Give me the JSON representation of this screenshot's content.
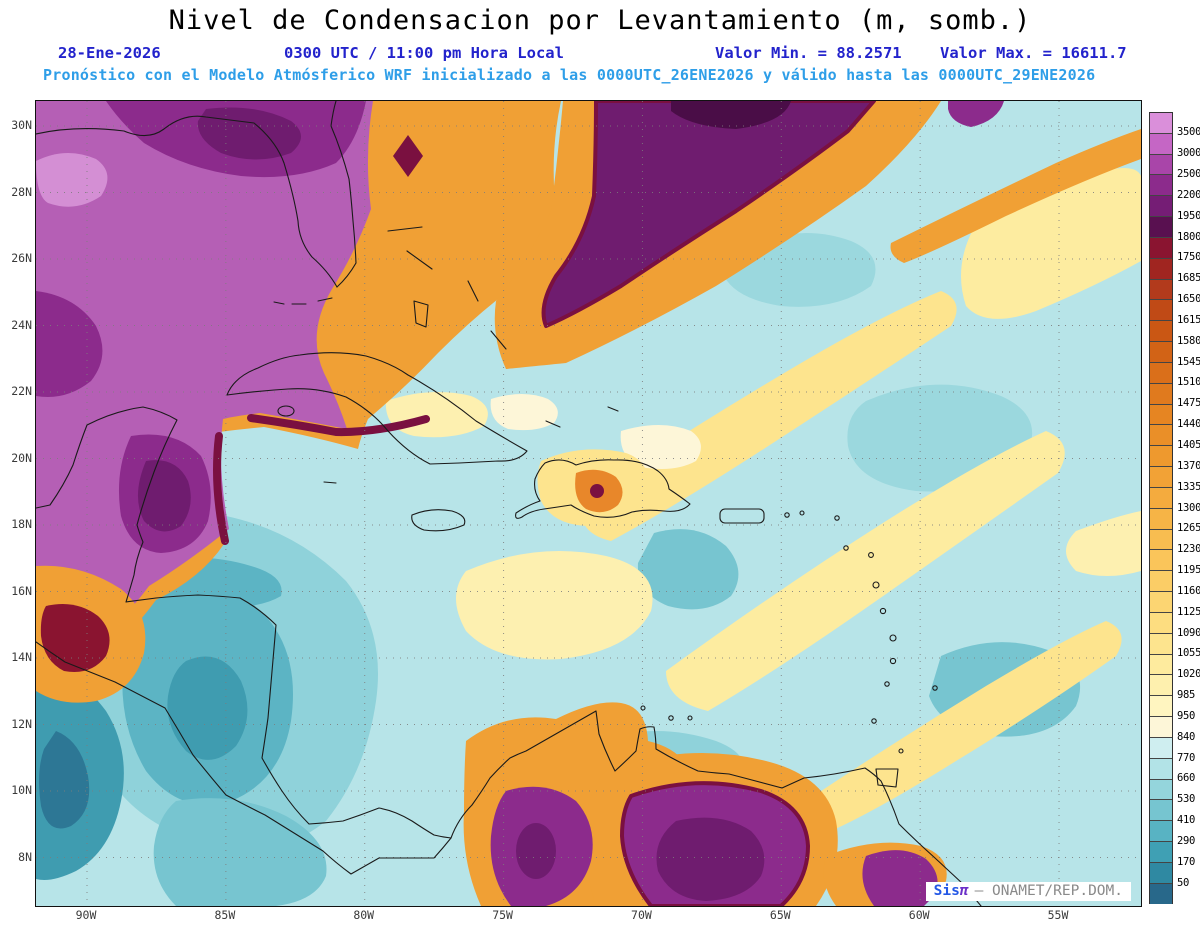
{
  "title": "Nivel de Condensacion por Levantamiento (m, somb.)",
  "header": {
    "date": "28-Ene-2026",
    "time": "0300 UTC / 11:00 pm Hora Local",
    "min_label": "Valor Min. = 88.2571",
    "max_label": "Valor Max. = 16611.7",
    "forecast_line": "Pronóstico con el Modelo Atmósferico WRF inicializado a las 0000UTC_26ENE2026 y válido hasta las  0000UTC_29ENE2026"
  },
  "map": {
    "lat_labels": [
      "30N",
      "28N",
      "26N",
      "24N",
      "22N",
      "20N",
      "18N",
      "16N",
      "14N",
      "12N",
      "10N",
      "8N"
    ],
    "lon_labels": [
      "90W",
      "85W",
      "80W",
      "75W",
      "70W",
      "65W",
      "60W",
      "55W"
    ]
  },
  "colorbar": {
    "labels": [
      "3500",
      "3000",
      "2500",
      "2200",
      "1950",
      "1800",
      "1750",
      "1685",
      "1650",
      "1615",
      "1580",
      "1545",
      "1510",
      "1475",
      "1440",
      "1405",
      "1370",
      "1335",
      "1300",
      "1265",
      "1230",
      "1195",
      "1160",
      "1125",
      "1090",
      "1055",
      "1020",
      "985",
      "950",
      "840",
      "770",
      "660",
      "530",
      "410",
      "290",
      "170",
      "50"
    ],
    "colors": [
      "#da8fda",
      "#c566c5",
      "#a945a9",
      "#8c2b8c",
      "#751d75",
      "#591050",
      "#8a1430",
      "#a02520",
      "#b23a1c",
      "#c04a16",
      "#ca5714",
      "#d26316",
      "#da6f1a",
      "#e07a1e",
      "#e68522",
      "#ea8f28",
      "#ee992e",
      "#f2a236",
      "#f4ab3e",
      "#f6b446",
      "#f8bd50",
      "#fac55a",
      "#fbcd66",
      "#fcd572",
      "#fddd80",
      "#fde48e",
      "#feeb9e",
      "#fef0ae",
      "#fff5c0",
      "#fdf6d8",
      "#cfeef0",
      "#b2e3e7",
      "#94d5dc",
      "#76c5d0",
      "#58b3c3",
      "#3fa0b4",
      "#2f89a2",
      "#28688a"
    ]
  },
  "attribution": {
    "brand_sis": "Sis",
    "brand_pi": "π",
    "suffix": "– ONAMET/REP.DOM."
  },
  "chart_data": {
    "type": "heatmap",
    "title": "Nivel de Condensacion por Levantamiento (m, somb.)",
    "units": "m",
    "value_min": 88.2571,
    "value_max": 16611.7,
    "lat_ticks": [
      "30N",
      "28N",
      "26N",
      "24N",
      "22N",
      "20N",
      "18N",
      "16N",
      "14N",
      "12N",
      "10N",
      "8N"
    ],
    "lon_ticks": [
      "90W",
      "85W",
      "80W",
      "75W",
      "70W",
      "65W",
      "60W",
      "55W"
    ],
    "scale_levels_m": [
      50,
      170,
      290,
      410,
      530,
      660,
      770,
      840,
      950,
      985,
      1020,
      1055,
      1090,
      1125,
      1160,
      1195,
      1230,
      1265,
      1300,
      1335,
      1370,
      1405,
      1440,
      1475,
      1510,
      1545,
      1580,
      1615,
      1650,
      1685,
      1750,
      1800,
      1950,
      2200,
      2500,
      3000,
      3500
    ],
    "legend_position": "right",
    "grid": true
  }
}
